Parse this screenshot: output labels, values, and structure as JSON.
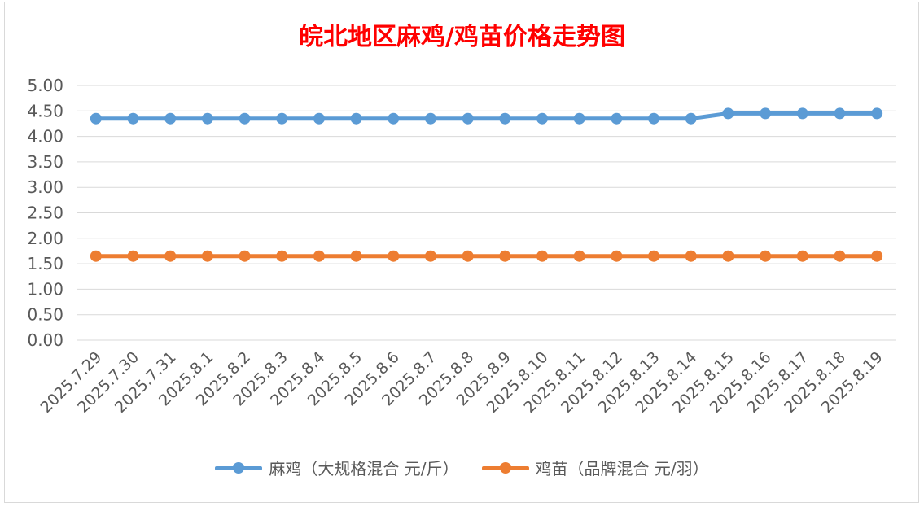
{
  "chart_data": {
    "type": "line",
    "title": "皖北地区麻鸡/鸡苗价格走势图",
    "categories": [
      "2025.7.29",
      "2025.7.30",
      "2025.7.31",
      "2025.8.1",
      "2025.8.2",
      "2025.8.3",
      "2025.8.4",
      "2025.8.5",
      "2025.8.6",
      "2025.8.7",
      "2025.8.8",
      "2025.8.9",
      "2025.8.10",
      "2025.8.11",
      "2025.8.12",
      "2025.8.13",
      "2025.8.14",
      "2025.8.15",
      "2025.8.16",
      "2025.8.17",
      "2025.8.18",
      "2025.8.19"
    ],
    "y_ticks": [
      "0.00",
      "0.50",
      "1.00",
      "1.50",
      "2.00",
      "2.50",
      "3.00",
      "3.50",
      "4.00",
      "4.50",
      "5.00"
    ],
    "ylim": [
      0,
      5
    ],
    "grid": true,
    "legend_position": "bottom",
    "series": [
      {
        "name": "麻鸡（大规格混合 元/斤）",
        "color": "#5b9bd5",
        "values": [
          4.35,
          4.35,
          4.35,
          4.35,
          4.35,
          4.35,
          4.35,
          4.35,
          4.35,
          4.35,
          4.35,
          4.35,
          4.35,
          4.35,
          4.35,
          4.35,
          4.35,
          4.45,
          4.45,
          4.45,
          4.45,
          4.45
        ]
      },
      {
        "name": "鸡苗（品牌混合 元/羽）",
        "color": "#ed7d31",
        "values": [
          1.65,
          1.65,
          1.65,
          1.65,
          1.65,
          1.65,
          1.65,
          1.65,
          1.65,
          1.65,
          1.65,
          1.65,
          1.65,
          1.65,
          1.65,
          1.65,
          1.65,
          1.65,
          1.65,
          1.65,
          1.65,
          1.65
        ]
      }
    ]
  }
}
